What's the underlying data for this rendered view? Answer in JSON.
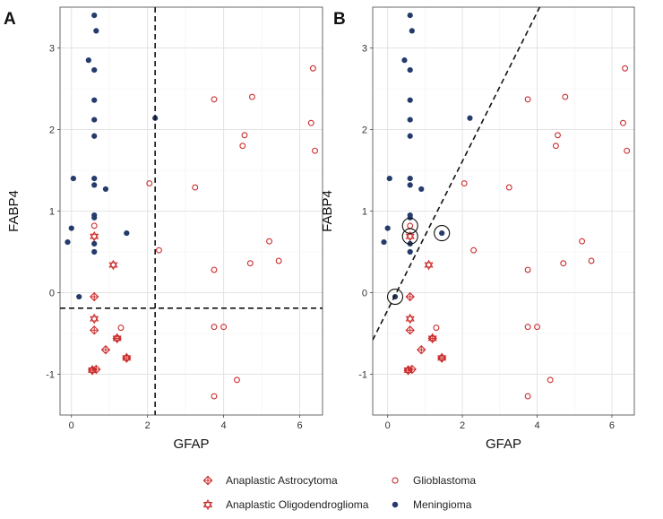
{
  "colors": {
    "red": "#cc2d2d",
    "navy": "#243b6b",
    "grid": "#e3e3e3"
  },
  "chart_data": [
    {
      "panel": "A",
      "type": "scatter",
      "xlabel": "GFAP",
      "ylabel": "FABP4",
      "xlim": [
        -0.3,
        6.6
      ],
      "ylim": [
        -1.5,
        3.5
      ],
      "xticks": [
        0,
        2,
        4,
        6
      ],
      "yticks": [
        -1,
        0,
        1,
        2,
        3
      ],
      "grid": true,
      "thresholds": {
        "vertical_x": 2.2,
        "horizontal_y": -0.19
      },
      "diagonal": null,
      "circled_points": []
    },
    {
      "panel": "B",
      "type": "scatter",
      "xlabel": "GFAP",
      "ylabel": "FABP4",
      "xlim": [
        -0.4,
        6.6
      ],
      "ylim": [
        -1.5,
        3.5
      ],
      "xticks": [
        0,
        2,
        4,
        6
      ],
      "yticks": [
        -1,
        0,
        1,
        2,
        3
      ],
      "grid": true,
      "thresholds": null,
      "diagonal": {
        "from": [
          -0.4,
          -0.58
        ],
        "to": [
          4.2,
          3.62
        ]
      },
      "circled_points": [
        [
          0.2,
          -0.05
        ],
        [
          0.6,
          0.82
        ],
        [
          0.6,
          0.69
        ],
        [
          1.45,
          0.73
        ]
      ]
    }
  ],
  "series": [
    {
      "name": "Anaplastic Astrocytoma",
      "marker": "diamond-plus",
      "color": "#cc2d2d",
      "points": [
        [
          0.6,
          -0.05
        ],
        [
          0.6,
          -0.46
        ],
        [
          0.9,
          -0.7
        ],
        [
          0.55,
          -0.95
        ],
        [
          0.65,
          -0.94
        ],
        [
          1.45,
          -0.8
        ],
        [
          1.2,
          -0.56
        ]
      ]
    },
    {
      "name": "Anaplastic Oligodendroglioma",
      "marker": "hexagram",
      "color": "#cc2d2d",
      "points": [
        [
          0.6,
          0.69
        ],
        [
          0.6,
          -0.32
        ],
        [
          1.1,
          0.34
        ],
        [
          1.2,
          -0.56
        ],
        [
          1.45,
          -0.8
        ],
        [
          0.55,
          -0.95
        ]
      ]
    },
    {
      "name": "Glioblastoma",
      "marker": "open-circle",
      "color": "#cc2d2d",
      "points": [
        [
          0.6,
          0.82
        ],
        [
          2.05,
          1.34
        ],
        [
          2.3,
          0.52
        ],
        [
          3.25,
          1.29
        ],
        [
          3.75,
          2.37
        ],
        [
          4.75,
          2.4
        ],
        [
          4.55,
          1.93
        ],
        [
          4.5,
          1.8
        ],
        [
          6.35,
          2.75
        ],
        [
          6.3,
          2.08
        ],
        [
          6.4,
          1.74
        ],
        [
          5.2,
          0.63
        ],
        [
          5.45,
          0.39
        ],
        [
          4.7,
          0.36
        ],
        [
          3.75,
          0.28
        ],
        [
          3.75,
          -0.42
        ],
        [
          4.0,
          -0.42
        ],
        [
          1.3,
          -0.43
        ],
        [
          4.35,
          -1.07
        ],
        [
          3.75,
          -1.27
        ]
      ]
    },
    {
      "name": "Meningioma",
      "marker": "filled-circle",
      "color": "#243b6b",
      "points": [
        [
          0.6,
          3.4
        ],
        [
          0.65,
          3.21
        ],
        [
          0.45,
          2.85
        ],
        [
          0.6,
          2.73
        ],
        [
          0.6,
          2.36
        ],
        [
          0.6,
          2.12
        ],
        [
          0.6,
          1.92
        ],
        [
          0.6,
          1.4
        ],
        [
          0.6,
          1.32
        ],
        [
          0.9,
          1.27
        ],
        [
          0.05,
          1.4
        ],
        [
          0.6,
          0.95
        ],
        [
          0.6,
          0.92
        ],
        [
          0.6,
          0.6
        ],
        [
          0.6,
          0.5
        ],
        [
          0.0,
          0.79
        ],
        [
          -0.1,
          0.62
        ],
        [
          0.2,
          -0.05
        ],
        [
          1.45,
          0.73
        ],
        [
          2.2,
          2.14
        ]
      ]
    }
  ],
  "legend": {
    "items": [
      {
        "name": "Anaplastic Astrocytoma",
        "marker": "diamond-plus"
      },
      {
        "name": "Glioblastoma",
        "marker": "open-circle"
      },
      {
        "name": "Anaplastic Oligodendroglioma",
        "marker": "hexagram"
      },
      {
        "name": "Meningioma",
        "marker": "filled-circle"
      }
    ]
  }
}
